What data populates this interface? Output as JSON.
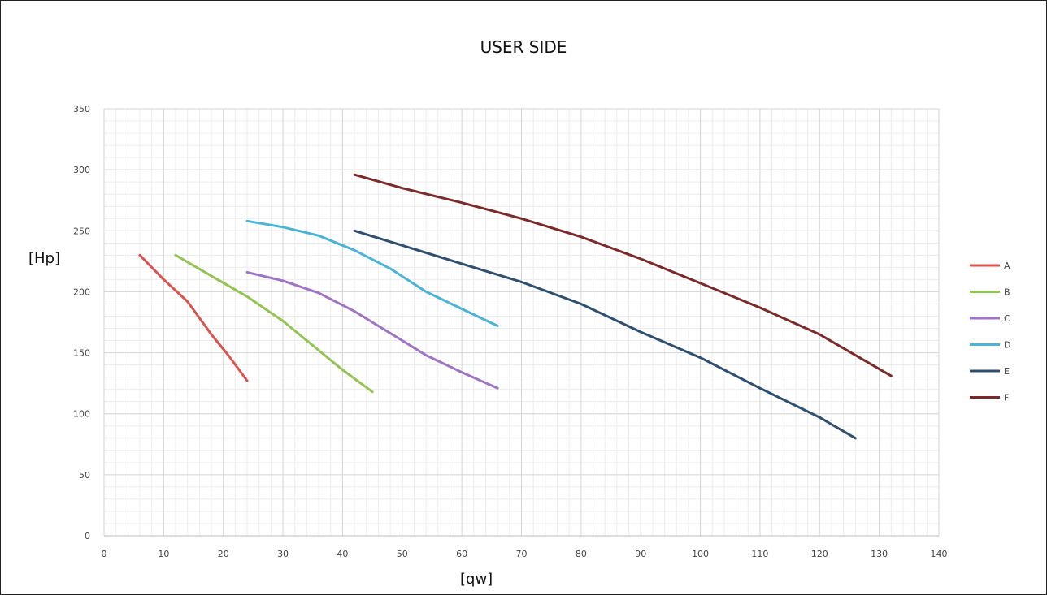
{
  "chart_data": {
    "type": "line",
    "title": "USER SIDE",
    "xlabel": "[qw]",
    "ylabel": "[Hp]",
    "xlim": [
      0,
      140
    ],
    "ylim": [
      0,
      350
    ],
    "x_ticks": [
      0,
      10,
      20,
      30,
      40,
      50,
      60,
      70,
      80,
      90,
      100,
      110,
      120,
      130,
      140
    ],
    "y_ticks": [
      0,
      50,
      100,
      150,
      200,
      250,
      300,
      350
    ],
    "grid": true,
    "minor_grid": true,
    "legend_position": "right",
    "series": [
      {
        "name": "A",
        "color": "#d9534f",
        "points": [
          [
            6,
            230
          ],
          [
            10,
            210
          ],
          [
            14,
            192
          ],
          [
            18,
            165
          ],
          [
            21,
            147
          ],
          [
            24,
            127
          ]
        ]
      },
      {
        "name": "B",
        "color": "#92c353",
        "points": [
          [
            12,
            230
          ],
          [
            18,
            213
          ],
          [
            24,
            196
          ],
          [
            30,
            176
          ],
          [
            36,
            152
          ],
          [
            40,
            136
          ],
          [
            45,
            118
          ]
        ]
      },
      {
        "name": "C",
        "color": "#9f74c4",
        "points": [
          [
            24,
            216
          ],
          [
            30,
            209
          ],
          [
            36,
            199
          ],
          [
            42,
            184
          ],
          [
            48,
            166
          ],
          [
            54,
            148
          ],
          [
            60,
            134
          ],
          [
            66,
            121
          ]
        ]
      },
      {
        "name": "D",
        "color": "#4bb3d6",
        "points": [
          [
            24,
            258
          ],
          [
            30,
            253
          ],
          [
            36,
            246
          ],
          [
            42,
            234
          ],
          [
            48,
            219
          ],
          [
            54,
            200
          ],
          [
            60,
            186
          ],
          [
            66,
            172
          ]
        ]
      },
      {
        "name": "E",
        "color": "#2f4f6f",
        "points": [
          [
            42,
            250
          ],
          [
            50,
            238
          ],
          [
            60,
            223
          ],
          [
            70,
            208
          ],
          [
            80,
            190
          ],
          [
            90,
            167
          ],
          [
            100,
            146
          ],
          [
            110,
            121
          ],
          [
            120,
            97
          ],
          [
            126,
            80
          ]
        ]
      },
      {
        "name": "F",
        "color": "#7b2a2a",
        "points": [
          [
            42,
            296
          ],
          [
            50,
            285
          ],
          [
            60,
            273
          ],
          [
            70,
            260
          ],
          [
            80,
            245
          ],
          [
            90,
            227
          ],
          [
            100,
            207
          ],
          [
            110,
            187
          ],
          [
            120,
            165
          ],
          [
            126,
            148
          ],
          [
            132,
            131
          ]
        ]
      }
    ]
  }
}
